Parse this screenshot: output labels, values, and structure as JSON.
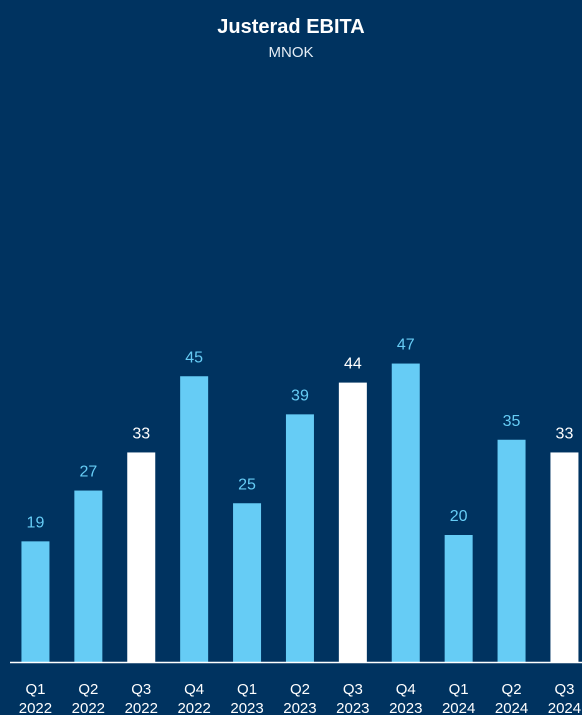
{
  "chart_data": {
    "type": "bar",
    "title": "Justerad EBITA",
    "subtitle": "MNOK",
    "xlabel": "",
    "ylabel": "",
    "categories": [
      [
        "Q1",
        "2022"
      ],
      [
        "Q2",
        "2022"
      ],
      [
        "Q3",
        "2022"
      ],
      [
        "Q4",
        "2022"
      ],
      [
        "Q1",
        "2023"
      ],
      [
        "Q2",
        "2023"
      ],
      [
        "Q3",
        "2023"
      ],
      [
        "Q4",
        "2023"
      ],
      [
        "Q1",
        "2024"
      ],
      [
        "Q2",
        "2024"
      ],
      [
        "Q3",
        "2024"
      ]
    ],
    "values": [
      19,
      27,
      33,
      45,
      25,
      39,
      44,
      47,
      20,
      35,
      33
    ],
    "highlighted": [
      false,
      false,
      true,
      false,
      false,
      false,
      true,
      false,
      false,
      false,
      true
    ],
    "ylim": [
      0,
      50
    ],
    "grid": false,
    "colors": {
      "background": "#003360",
      "bar": "#66ccf5",
      "bar_highlight": "#ffffff",
      "label": "#66ccf5",
      "label_highlight": "#ffffff",
      "axis": "#ffffff",
      "tick": "#ffffff"
    }
  }
}
